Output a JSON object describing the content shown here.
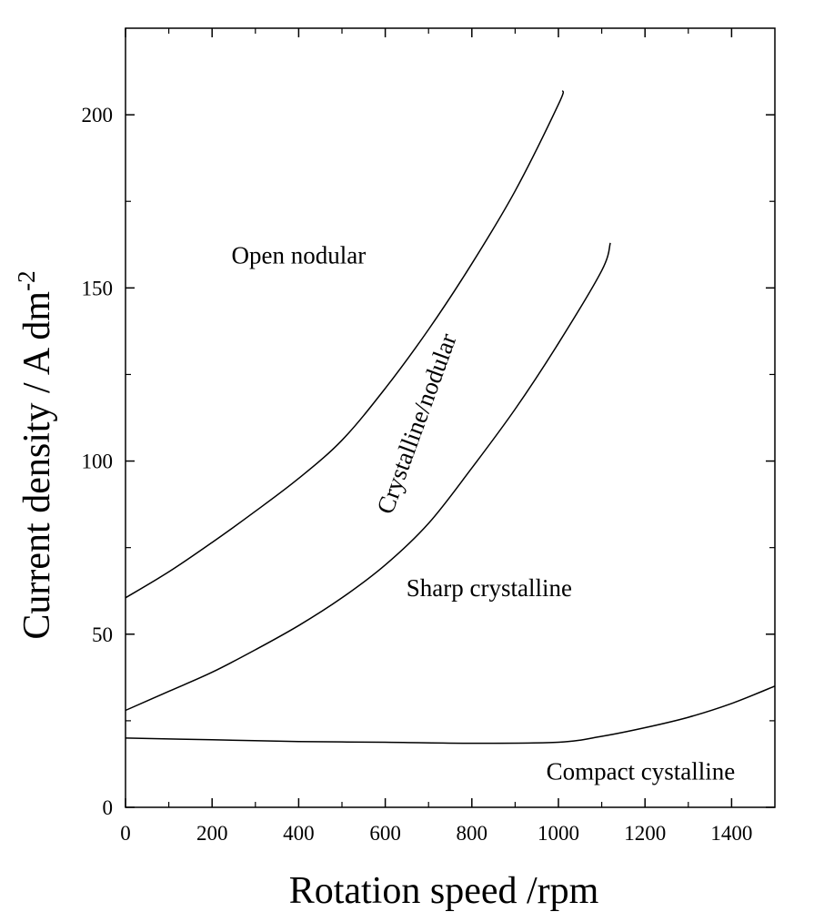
{
  "chart_data": {
    "type": "line",
    "title": "",
    "xlabel": "Rotation speed /rpm",
    "ylabel": "Current density / A dm",
    "ylabel_superscript": "-2",
    "xlim": [
      0,
      1500
    ],
    "ylim": [
      0,
      225
    ],
    "x_ticks": [
      "0",
      "200",
      "400",
      "600",
      "800",
      "1000",
      "1200",
      "1400"
    ],
    "y_ticks": [
      "0",
      "50",
      "100",
      "150",
      "200"
    ],
    "grid": false,
    "legend": "none",
    "series": [
      {
        "x": [
          0,
          100,
          200,
          300,
          400,
          500,
          600,
          700,
          800,
          900,
          1000,
          1010
        ],
        "y": [
          60.5,
          68,
          76.5,
          85.5,
          95,
          106,
          121,
          138,
          157,
          178,
          203,
          207
        ]
      },
      {
        "x": [
          0,
          100,
          200,
          300,
          400,
          500,
          600,
          700,
          800,
          900,
          1000,
          1100,
          1120
        ],
        "y": [
          28,
          33.5,
          39,
          45.5,
          52.5,
          60.5,
          70,
          82,
          98,
          115,
          134,
          155,
          163
        ]
      },
      {
        "x": [
          0,
          200,
          400,
          600,
          800,
          1000,
          1100,
          1200,
          1300,
          1400,
          1500
        ],
        "y": [
          20,
          19.5,
          19,
          18.8,
          18.5,
          18.8,
          20.5,
          23,
          26,
          30,
          35
        ]
      }
    ],
    "annotations": [
      {
        "text": "Open nodular",
        "x": 400,
        "y": 157
      },
      {
        "text": "Crystalline/nodular",
        "x": 690,
        "y": 110,
        "rotation": -70
      },
      {
        "text": "Sharp crystalline",
        "x": 840,
        "y": 61
      },
      {
        "text": "Compact cystalline",
        "x": 1190,
        "y": 8
      }
    ]
  }
}
